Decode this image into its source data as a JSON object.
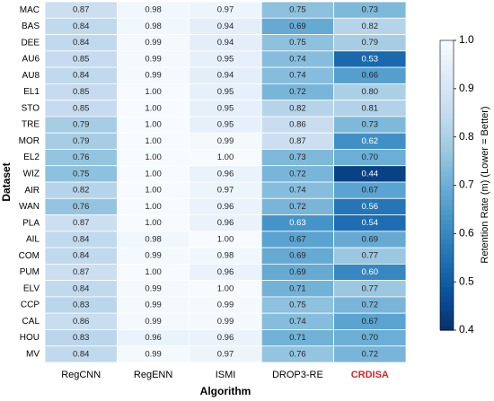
{
  "chart_data": {
    "type": "heatmap",
    "xlabel": "Algorithm",
    "ylabel": "Dataset",
    "colorbar_label": "Retention Rate (m) (Lower = Better)",
    "cmap": "Blues_r",
    "clim": [
      0.4,
      1.0
    ],
    "cticks": [
      0.4,
      0.5,
      0.6,
      0.7,
      0.8,
      0.9,
      {
        "value": 1,
        "label": "1.0"
      }
    ],
    "categories": [
      "MAC",
      "BAS",
      "DEE",
      "AU6",
      "AU8",
      "EL1",
      "STO",
      "TRE",
      "MOR",
      "EL2",
      "WIZ",
      "AIR",
      "WAN",
      "PLA",
      "AIL",
      "COM",
      "PUM",
      "ELV",
      "CCP",
      "CAL",
      "HOU",
      "MV"
    ],
    "series": [
      {
        "name": "RegCNN",
        "label_color": "#000000",
        "values": [
          0.87,
          0.84,
          0.84,
          0.85,
          0.84,
          0.85,
          0.85,
          0.79,
          0.79,
          0.76,
          0.75,
          0.82,
          0.76,
          0.87,
          0.84,
          0.84,
          0.87,
          0.84,
          0.83,
          0.86,
          0.83,
          0.84
        ],
        "value_labels": [
          "0.87",
          "0.84",
          "0.84",
          "0.85",
          "0.84",
          "0.85",
          "0.85",
          "0.79",
          "0.79",
          "0.76",
          "0.75",
          "0.82",
          "0.76",
          "0.87",
          "0.84",
          "0.84",
          "0.87",
          "0.84",
          "0.83",
          "0.86",
          "0.83",
          "0.84"
        ]
      },
      {
        "name": "RegENN",
        "label_color": "#000000",
        "values": [
          0.98,
          0.98,
          0.99,
          0.99,
          0.99,
          1,
          1,
          1,
          1,
          1,
          1,
          1,
          1,
          1,
          0.98,
          0.99,
          1,
          0.99,
          0.99,
          0.99,
          0.96,
          0.99
        ],
        "value_labels": [
          "0.98",
          "0.98",
          "0.99",
          "0.99",
          "0.99",
          "1.00",
          "1.00",
          "1.00",
          "1.00",
          "1.00",
          "1.00",
          "1.00",
          "1.00",
          "1.00",
          "0.98",
          "0.99",
          "1.00",
          "0.99",
          "0.99",
          "0.99",
          "0.96",
          "0.99"
        ]
      },
      {
        "name": "ISMI",
        "label_color": "#000000",
        "values": [
          0.97,
          0.94,
          0.94,
          0.95,
          0.94,
          0.95,
          0.95,
          0.95,
          0.99,
          1,
          0.96,
          0.97,
          0.96,
          0.96,
          1,
          0.98,
          0.96,
          1,
          0.99,
          0.99,
          0.96,
          0.97
        ],
        "value_labels": [
          "0.97",
          "0.94",
          "0.94",
          "0.95",
          "0.94",
          "0.95",
          "0.95",
          "0.95",
          "0.99",
          "1.00",
          "0.96",
          "0.97",
          "0.96",
          "0.96",
          "1.00",
          "0.98",
          "0.96",
          "1.00",
          "0.99",
          "0.99",
          "0.96",
          "0.97"
        ]
      },
      {
        "name": "DROP3-RE",
        "label_color": "#000000",
        "values": [
          0.75,
          0.69,
          0.75,
          0.74,
          0.74,
          0.72,
          0.82,
          0.86,
          0.87,
          0.73,
          0.72,
          0.74,
          0.72,
          0.63,
          0.67,
          0.69,
          0.69,
          0.71,
          0.75,
          0.74,
          0.71,
          0.76
        ],
        "value_labels": [
          "0.75",
          "0.69",
          "0.75",
          "0.74",
          "0.74",
          "0.72",
          "0.82",
          "0.86",
          "0.87",
          "0.73",
          "0.72",
          "0.74",
          "0.72",
          "0.63",
          "0.67",
          "0.69",
          "0.69",
          "0.71",
          "0.75",
          "0.74",
          "0.71",
          "0.76"
        ]
      },
      {
        "name": "CRDISA",
        "label_color": "#d62728",
        "values": [
          0.73,
          0.82,
          0.79,
          0.53,
          0.66,
          0.8,
          0.81,
          0.73,
          0.62,
          0.7,
          0.44,
          0.67,
          0.56,
          0.54,
          0.69,
          0.77,
          0.6,
          0.77,
          0.72,
          0.67,
          0.7,
          0.72
        ],
        "value_labels": [
          "0.73",
          "0.82",
          "0.79",
          "0.53",
          "0.66",
          "0.80",
          "0.81",
          "0.73",
          "0.62",
          "0.70",
          "0.44",
          "0.67",
          "0.56",
          "0.54",
          "0.69",
          "0.77",
          "0.60",
          "0.77",
          "0.72",
          "0.67",
          "0.70",
          "0.72"
        ]
      }
    ]
  }
}
